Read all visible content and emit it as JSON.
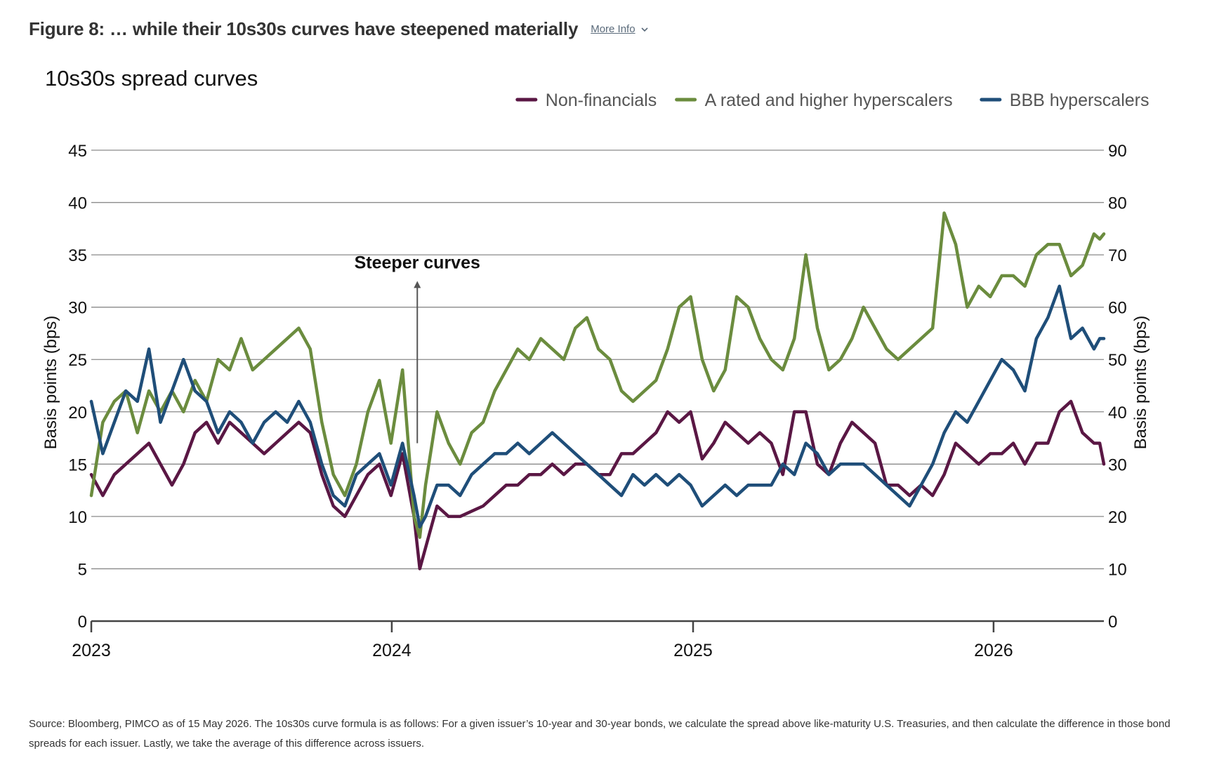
{
  "figure": {
    "title": "Figure 8: … while their 10s30s curves have steepened materially",
    "more_info_label": "More Info",
    "more_info_icon": "chevron-down-icon"
  },
  "source_note": "Source: Bloomberg, PIMCO as of 15 May 2026. The 10s30s curve formula is as follows: For a given issuer’s 10-year and 30-year bonds, we calculate the spread above like-maturity U.S. Treasuries, and then calculate the difference in those bond spreads for each issuer. Lastly, we take the average of this difference across issuers.",
  "chart_data": {
    "type": "line",
    "title": "10s30s spread curves",
    "xlabel": "",
    "ylabel_left": "Basis points (bps)",
    "ylabel_right": "Basis points (bps)",
    "ylim_left": [
      0,
      45
    ],
    "ylim_right": [
      0,
      90
    ],
    "yticks_left": [
      0,
      5,
      10,
      15,
      20,
      25,
      30,
      35,
      40,
      45
    ],
    "yticks_right": [
      0,
      10,
      20,
      30,
      40,
      50,
      60,
      70,
      80,
      90
    ],
    "xlim": [
      "2023-01-01",
      "2026-05-15"
    ],
    "xticks": [
      "2023",
      "2024",
      "2025",
      "2026"
    ],
    "grid": "horizontal",
    "legend_position": "top-right",
    "annotation": {
      "text": "Steeper curves",
      "x": "2024-02-01",
      "y_from": 17,
      "y_to": 32.5
    },
    "series": [
      {
        "name": "Non-financials",
        "color": "#5a1744",
        "axis": "left",
        "points": [
          [
            "2023-01-01",
            14
          ],
          [
            "2023-01-15",
            12
          ],
          [
            "2023-01-29",
            14
          ],
          [
            "2023-02-12",
            15
          ],
          [
            "2023-02-26",
            16
          ],
          [
            "2023-03-12",
            17
          ],
          [
            "2023-03-26",
            15
          ],
          [
            "2023-04-09",
            13
          ],
          [
            "2023-04-23",
            15
          ],
          [
            "2023-05-07",
            18
          ],
          [
            "2023-05-21",
            19
          ],
          [
            "2023-06-04",
            17
          ],
          [
            "2023-06-18",
            19
          ],
          [
            "2023-07-02",
            18
          ],
          [
            "2023-07-16",
            17
          ],
          [
            "2023-07-30",
            16
          ],
          [
            "2023-08-13",
            17
          ],
          [
            "2023-08-27",
            18
          ],
          [
            "2023-09-10",
            19
          ],
          [
            "2023-09-24",
            18
          ],
          [
            "2023-10-08",
            14
          ],
          [
            "2023-10-22",
            11
          ],
          [
            "2023-11-05",
            10
          ],
          [
            "2023-11-19",
            12
          ],
          [
            "2023-12-03",
            14
          ],
          [
            "2023-12-17",
            15
          ],
          [
            "2023-12-31",
            12
          ],
          [
            "2024-01-14",
            16
          ],
          [
            "2024-01-28",
            10
          ],
          [
            "2024-02-04",
            5
          ],
          [
            "2024-02-11",
            7
          ],
          [
            "2024-02-25",
            11
          ],
          [
            "2024-03-10",
            10
          ],
          [
            "2024-03-24",
            10
          ],
          [
            "2024-04-07",
            10.5
          ],
          [
            "2024-04-21",
            11
          ],
          [
            "2024-05-05",
            12
          ],
          [
            "2024-05-19",
            13
          ],
          [
            "2024-06-02",
            13
          ],
          [
            "2024-06-16",
            14
          ],
          [
            "2024-06-30",
            14
          ],
          [
            "2024-07-14",
            15
          ],
          [
            "2024-07-28",
            14
          ],
          [
            "2024-08-11",
            15
          ],
          [
            "2024-08-25",
            15
          ],
          [
            "2024-09-08",
            14
          ],
          [
            "2024-09-22",
            14
          ],
          [
            "2024-10-06",
            16
          ],
          [
            "2024-10-20",
            16
          ],
          [
            "2024-11-03",
            17
          ],
          [
            "2024-11-17",
            18
          ],
          [
            "2024-12-01",
            20
          ],
          [
            "2024-12-15",
            19
          ],
          [
            "2024-12-29",
            20
          ],
          [
            "2025-01-12",
            15.5
          ],
          [
            "2025-01-26",
            17
          ],
          [
            "2025-02-09",
            19
          ],
          [
            "2025-02-23",
            18
          ],
          [
            "2025-03-09",
            17
          ],
          [
            "2025-03-23",
            18
          ],
          [
            "2025-04-06",
            17
          ],
          [
            "2025-04-20",
            14
          ],
          [
            "2025-05-04",
            20
          ],
          [
            "2025-05-18",
            20
          ],
          [
            "2025-06-01",
            15
          ],
          [
            "2025-06-15",
            14
          ],
          [
            "2025-06-29",
            17
          ],
          [
            "2025-07-13",
            19
          ],
          [
            "2025-07-27",
            18
          ],
          [
            "2025-08-10",
            17
          ],
          [
            "2025-08-24",
            13
          ],
          [
            "2025-09-07",
            13
          ],
          [
            "2025-09-21",
            12
          ],
          [
            "2025-10-05",
            13
          ],
          [
            "2025-10-19",
            12
          ],
          [
            "2025-11-02",
            14
          ],
          [
            "2025-11-16",
            17
          ],
          [
            "2025-11-30",
            16
          ],
          [
            "2025-12-14",
            15
          ],
          [
            "2025-12-28",
            16
          ],
          [
            "2026-01-11",
            16
          ],
          [
            "2026-01-25",
            17
          ],
          [
            "2026-02-08",
            15
          ],
          [
            "2026-02-22",
            17
          ],
          [
            "2026-03-08",
            17
          ],
          [
            "2026-03-22",
            20
          ],
          [
            "2026-04-05",
            21
          ],
          [
            "2026-04-19",
            18
          ],
          [
            "2026-05-03",
            17
          ],
          [
            "2026-05-10",
            17
          ],
          [
            "2026-05-15",
            15
          ]
        ]
      },
      {
        "name": "A rated and higher hyperscalers",
        "color": "#6b8c3e",
        "axis": "left",
        "points": [
          [
            "2023-01-01",
            12
          ],
          [
            "2023-01-15",
            19
          ],
          [
            "2023-01-29",
            21
          ],
          [
            "2023-02-12",
            22
          ],
          [
            "2023-02-26",
            18
          ],
          [
            "2023-03-12",
            22
          ],
          [
            "2023-03-26",
            20
          ],
          [
            "2023-04-09",
            22
          ],
          [
            "2023-04-23",
            20
          ],
          [
            "2023-05-07",
            23
          ],
          [
            "2023-05-21",
            21
          ],
          [
            "2023-06-04",
            25
          ],
          [
            "2023-06-18",
            24
          ],
          [
            "2023-07-02",
            27
          ],
          [
            "2023-07-16",
            24
          ],
          [
            "2023-07-30",
            25
          ],
          [
            "2023-08-13",
            26
          ],
          [
            "2023-08-27",
            27
          ],
          [
            "2023-09-10",
            28
          ],
          [
            "2023-09-24",
            26
          ],
          [
            "2023-10-08",
            19
          ],
          [
            "2023-10-22",
            14
          ],
          [
            "2023-11-05",
            12
          ],
          [
            "2023-11-19",
            15
          ],
          [
            "2023-12-03",
            20
          ],
          [
            "2023-12-17",
            23
          ],
          [
            "2023-12-31",
            17
          ],
          [
            "2024-01-14",
            24
          ],
          [
            "2024-01-28",
            10
          ],
          [
            "2024-02-04",
            8
          ],
          [
            "2024-02-11",
            13
          ],
          [
            "2024-02-25",
            20
          ],
          [
            "2024-03-10",
            17
          ],
          [
            "2024-03-24",
            15
          ],
          [
            "2024-04-07",
            18
          ],
          [
            "2024-04-21",
            19
          ],
          [
            "2024-05-05",
            22
          ],
          [
            "2024-05-19",
            24
          ],
          [
            "2024-06-02",
            26
          ],
          [
            "2024-06-16",
            25
          ],
          [
            "2024-06-30",
            27
          ],
          [
            "2024-07-14",
            26
          ],
          [
            "2024-07-28",
            25
          ],
          [
            "2024-08-11",
            28
          ],
          [
            "2024-08-25",
            29
          ],
          [
            "2024-09-08",
            26
          ],
          [
            "2024-09-22",
            25
          ],
          [
            "2024-10-06",
            22
          ],
          [
            "2024-10-20",
            21
          ],
          [
            "2024-11-03",
            22
          ],
          [
            "2024-11-17",
            23
          ],
          [
            "2024-12-01",
            26
          ],
          [
            "2024-12-15",
            30
          ],
          [
            "2024-12-29",
            31
          ],
          [
            "2025-01-12",
            25
          ],
          [
            "2025-01-26",
            22
          ],
          [
            "2025-02-09",
            24
          ],
          [
            "2025-02-23",
            31
          ],
          [
            "2025-03-09",
            30
          ],
          [
            "2025-03-23",
            27
          ],
          [
            "2025-04-06",
            25
          ],
          [
            "2025-04-20",
            24
          ],
          [
            "2025-05-04",
            27
          ],
          [
            "2025-05-18",
            35
          ],
          [
            "2025-06-01",
            28
          ],
          [
            "2025-06-15",
            24
          ],
          [
            "2025-06-29",
            25
          ],
          [
            "2025-07-13",
            27
          ],
          [
            "2025-07-27",
            30
          ],
          [
            "2025-08-10",
            28
          ],
          [
            "2025-08-24",
            26
          ],
          [
            "2025-09-07",
            25
          ],
          [
            "2025-09-21",
            26
          ],
          [
            "2025-10-05",
            27
          ],
          [
            "2025-10-19",
            28
          ],
          [
            "2025-11-02",
            39
          ],
          [
            "2025-11-16",
            36
          ],
          [
            "2025-11-30",
            30
          ],
          [
            "2025-12-14",
            32
          ],
          [
            "2025-12-28",
            31
          ],
          [
            "2026-01-11",
            33
          ],
          [
            "2026-01-25",
            33
          ],
          [
            "2026-02-08",
            32
          ],
          [
            "2026-02-22",
            35
          ],
          [
            "2026-03-08",
            36
          ],
          [
            "2026-03-22",
            36
          ],
          [
            "2026-04-05",
            33
          ],
          [
            "2026-04-19",
            34
          ],
          [
            "2026-05-03",
            37
          ],
          [
            "2026-05-10",
            36.5
          ],
          [
            "2026-05-15",
            37
          ]
        ]
      },
      {
        "name": "BBB hyperscalers",
        "color": "#1f4e79",
        "axis": "left",
        "points": [
          [
            "2023-01-01",
            21
          ],
          [
            "2023-01-15",
            16
          ],
          [
            "2023-01-29",
            19
          ],
          [
            "2023-02-12",
            22
          ],
          [
            "2023-02-26",
            21
          ],
          [
            "2023-03-12",
            26
          ],
          [
            "2023-03-26",
            19
          ],
          [
            "2023-04-09",
            22
          ],
          [
            "2023-04-23",
            25
          ],
          [
            "2023-05-07",
            22
          ],
          [
            "2023-05-21",
            21
          ],
          [
            "2023-06-04",
            18
          ],
          [
            "2023-06-18",
            20
          ],
          [
            "2023-07-02",
            19
          ],
          [
            "2023-07-16",
            17
          ],
          [
            "2023-07-30",
            19
          ],
          [
            "2023-08-13",
            20
          ],
          [
            "2023-08-27",
            19
          ],
          [
            "2023-09-10",
            21
          ],
          [
            "2023-09-24",
            19
          ],
          [
            "2023-10-08",
            15
          ],
          [
            "2023-10-22",
            12
          ],
          [
            "2023-11-05",
            11
          ],
          [
            "2023-11-19",
            14
          ],
          [
            "2023-12-03",
            15
          ],
          [
            "2023-12-17",
            16
          ],
          [
            "2023-12-31",
            13
          ],
          [
            "2024-01-14",
            17
          ],
          [
            "2024-01-28",
            12
          ],
          [
            "2024-02-04",
            9
          ],
          [
            "2024-02-11",
            10
          ],
          [
            "2024-02-25",
            13
          ],
          [
            "2024-03-10",
            13
          ],
          [
            "2024-03-24",
            12
          ],
          [
            "2024-04-07",
            14
          ],
          [
            "2024-04-21",
            15
          ],
          [
            "2024-05-05",
            16
          ],
          [
            "2024-05-19",
            16
          ],
          [
            "2024-06-02",
            17
          ],
          [
            "2024-06-16",
            16
          ],
          [
            "2024-06-30",
            17
          ],
          [
            "2024-07-14",
            18
          ],
          [
            "2024-07-28",
            17
          ],
          [
            "2024-08-11",
            16
          ],
          [
            "2024-08-25",
            15
          ],
          [
            "2024-09-08",
            14
          ],
          [
            "2024-09-22",
            13
          ],
          [
            "2024-10-06",
            12
          ],
          [
            "2024-10-20",
            14
          ],
          [
            "2024-11-03",
            13
          ],
          [
            "2024-11-17",
            14
          ],
          [
            "2024-12-01",
            13
          ],
          [
            "2024-12-15",
            14
          ],
          [
            "2024-12-29",
            13
          ],
          [
            "2025-01-12",
            11
          ],
          [
            "2025-01-26",
            12
          ],
          [
            "2025-02-09",
            13
          ],
          [
            "2025-02-23",
            12
          ],
          [
            "2025-03-09",
            13
          ],
          [
            "2025-03-23",
            13
          ],
          [
            "2025-04-06",
            13
          ],
          [
            "2025-04-20",
            15
          ],
          [
            "2025-05-04",
            14
          ],
          [
            "2025-05-18",
            17
          ],
          [
            "2025-06-01",
            16
          ],
          [
            "2025-06-15",
            14
          ],
          [
            "2025-06-29",
            15
          ],
          [
            "2025-07-13",
            15
          ],
          [
            "2025-07-27",
            15
          ],
          [
            "2025-08-10",
            14
          ],
          [
            "2025-08-24",
            13
          ],
          [
            "2025-09-07",
            12
          ],
          [
            "2025-09-21",
            11
          ],
          [
            "2025-10-05",
            13
          ],
          [
            "2025-10-19",
            15
          ],
          [
            "2025-11-02",
            18
          ],
          [
            "2025-11-16",
            20
          ],
          [
            "2025-11-30",
            19
          ],
          [
            "2025-12-14",
            21
          ],
          [
            "2025-12-28",
            23
          ],
          [
            "2026-01-11",
            25
          ],
          [
            "2026-01-25",
            24
          ],
          [
            "2026-02-08",
            22
          ],
          [
            "2026-02-22",
            27
          ],
          [
            "2026-03-08",
            29
          ],
          [
            "2026-03-22",
            32
          ],
          [
            "2026-04-05",
            27
          ],
          [
            "2026-04-19",
            28
          ],
          [
            "2026-05-03",
            26
          ],
          [
            "2026-05-10",
            27
          ],
          [
            "2026-05-15",
            27
          ]
        ]
      }
    ]
  }
}
